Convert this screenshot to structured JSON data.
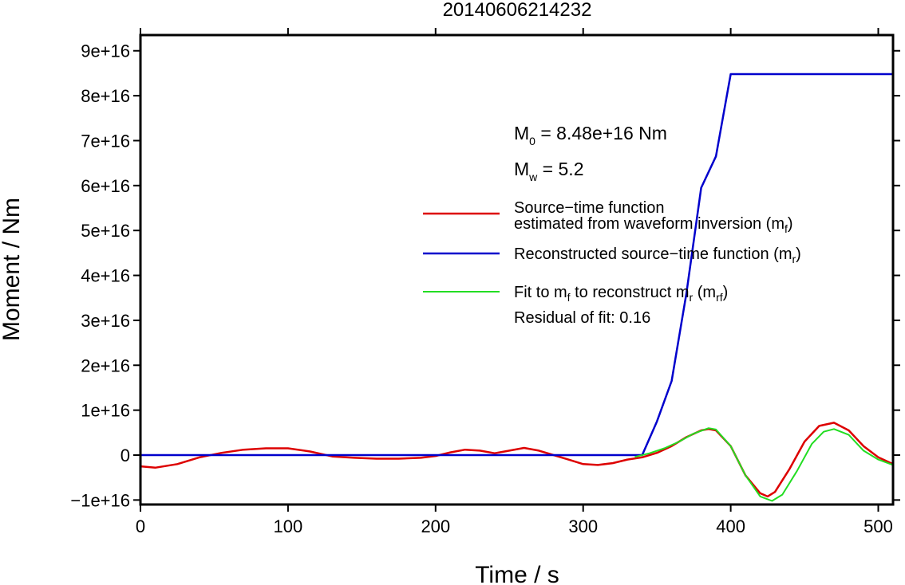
{
  "chart_data": {
    "type": "line",
    "title": "20140606214232",
    "xlabel": "Time / s",
    "ylabel": "Moment / Nm",
    "xlim": [
      0,
      510
    ],
    "ylim": [
      -1.1e+16,
      9.35e+16
    ],
    "xticks": [
      0,
      100,
      200,
      300,
      400,
      500
    ],
    "xtick_labels": [
      "0",
      "100",
      "200",
      "300",
      "400",
      "500"
    ],
    "yticks": [
      -1e+16,
      0,
      1e+16,
      2e+16,
      3e+16,
      4e+16,
      5e+16,
      6e+16,
      7e+16,
      8e+16,
      9e+16
    ],
    "ytick_labels": [
      "−1e+16",
      "0",
      "1e+16",
      "2e+16",
      "3e+16",
      "4e+16",
      "5e+16",
      "6e+16",
      "7e+16",
      "8e+16",
      "9e+16"
    ],
    "annotations": {
      "m0": {
        "symbol": "M",
        "sub": "0",
        "text": " = 8.48e+16 Nm"
      },
      "mw": {
        "symbol": "M",
        "sub": "w",
        "text": " = 5.2"
      },
      "residual": "Residual of fit: 0.16"
    },
    "legend": [
      {
        "line1": "Source−time function",
        "line2": "estimated from waveform inversion (m",
        "sub": "f",
        "close": ")",
        "color": "#dd0000"
      },
      {
        "line1": "Reconstructed source−time function (m",
        "sub": "r",
        "close": ")",
        "color": "#0000cc"
      },
      {
        "line1": "Fit to m",
        "sub": "f",
        "mid": " to reconstruct m",
        "sub2": "r",
        "mid2": " (m",
        "sub3": "rf",
        "close": ")",
        "color": "#22dd22"
      }
    ],
    "series": [
      {
        "color": "#dd0000",
        "x": [
          0,
          10,
          25,
          40,
          55,
          70,
          85,
          100,
          115,
          130,
          145,
          160,
          175,
          190,
          200,
          210,
          220,
          230,
          240,
          250,
          260,
          270,
          280,
          290,
          300,
          310,
          320,
          330,
          340,
          350,
          360,
          370,
          380,
          385,
          390,
          400,
          410,
          420,
          425,
          430,
          440,
          450,
          460,
          470,
          480,
          490,
          500,
          510
        ],
        "y": [
          -2500000000000000.0,
          -2800000000000000.0,
          -2000000000000000.0,
          -500000000000000.0,
          500000000000000.0,
          1200000000000000.0,
          1500000000000000.0,
          1500000000000000.0,
          800000000000000.0,
          -300000000000000.0,
          -600000000000000.0,
          -800000000000000.0,
          -800000000000000.0,
          -600000000000000.0,
          -200000000000000.0,
          600000000000000.0,
          1200000000000000.0,
          1000000000000000.0,
          400000000000000.0,
          1000000000000000.0,
          1600000000000000.0,
          1000000000000000.0,
          0.0,
          -1000000000000000.0,
          -2000000000000000.0,
          -2200000000000000.0,
          -1800000000000000.0,
          -1000000000000000.0,
          -500000000000000.0,
          500000000000000.0,
          2000000000000000.0,
          4000000000000000.0,
          5500000000000000.0,
          5800000000000000.0,
          5500000000000000.0,
          2000000000000000.0,
          -4500000000000000.0,
          -8500000000000000.0,
          -9200000000000000.0,
          -8200000000000000.0,
          -3000000000000000.0,
          3000000000000000.0,
          6500000000000000.0,
          7200000000000000.0,
          5500000000000000.0,
          2000000000000000.0,
          -500000000000000.0,
          -2000000000000000.0
        ]
      },
      {
        "color": "#0000cc",
        "x": [
          0,
          340,
          350,
          360,
          370,
          380,
          390,
          400,
          510
        ],
        "y": [
          0,
          0,
          7500000000000000.0,
          1.65e+16,
          3.6e+16,
          5.95e+16,
          6.65e+16,
          8.48e+16,
          8.48e+16
        ]
      },
      {
        "color": "#22dd22",
        "x": [
          335,
          345,
          355,
          365,
          375,
          385,
          390,
          400,
          410,
          420,
          428,
          435,
          445,
          455,
          463,
          470,
          480,
          490,
          500,
          510
        ],
        "y": [
          -400000000000000.0,
          400000000000000.0,
          1500000000000000.0,
          3000000000000000.0,
          4800000000000000.0,
          6000000000000000.0,
          5700000000000000.0,
          2000000000000000.0,
          -4500000000000000.0,
          -9200000000000000.0,
          -1.02e+16,
          -8800000000000000.0,
          -3500000000000000.0,
          2500000000000000.0,
          5200000000000000.0,
          5800000000000000.0,
          4500000000000000.0,
          1000000000000000.0,
          -1000000000000000.0,
          -2200000000000000.0
        ]
      }
    ]
  }
}
